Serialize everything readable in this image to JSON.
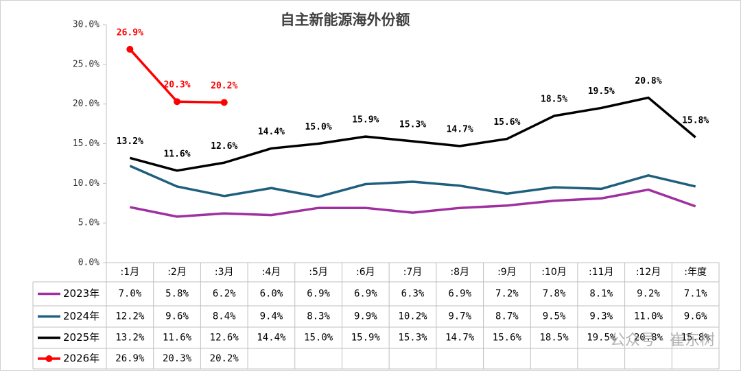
{
  "chart_data": {
    "type": "line",
    "title": "自主新能源海外份额",
    "categories": [
      ":1月",
      ":2月",
      ":3月",
      ":4月",
      ":5月",
      ":6月",
      ":7月",
      ":8月",
      ":9月",
      ":10月",
      ":11月",
      ":12月",
      ":年度"
    ],
    "series": [
      {
        "name": "2023年",
        "color": "#a0309f",
        "marker": false,
        "data_labels": false,
        "values": [
          7.0,
          5.8,
          6.2,
          6.0,
          6.9,
          6.9,
          6.3,
          6.9,
          7.2,
          7.8,
          8.1,
          9.2,
          7.1
        ],
        "value_labels": [
          "7.0%",
          "5.8%",
          "6.2%",
          "6.0%",
          "6.9%",
          "6.9%",
          "6.3%",
          "6.9%",
          "7.2%",
          "7.8%",
          "8.1%",
          "9.2%",
          "7.1%"
        ]
      },
      {
        "name": "2024年",
        "color": "#1f5f7e",
        "marker": false,
        "data_labels": false,
        "values": [
          12.2,
          9.6,
          8.4,
          9.4,
          8.3,
          9.9,
          10.2,
          9.7,
          8.7,
          9.5,
          9.3,
          11.0,
          9.6
        ],
        "value_labels": [
          "12.2%",
          "9.6%",
          "8.4%",
          "9.4%",
          "8.3%",
          "9.9%",
          "10.2%",
          "9.7%",
          "8.7%",
          "9.5%",
          "9.3%",
          "11.0%",
          "9.6%"
        ]
      },
      {
        "name": "2025年",
        "color": "#000000",
        "marker": false,
        "data_labels": true,
        "values": [
          13.2,
          11.6,
          12.6,
          14.4,
          15.0,
          15.9,
          15.3,
          14.7,
          15.6,
          18.5,
          19.5,
          20.8,
          15.8
        ],
        "value_labels": [
          "13.2%",
          "11.6%",
          "12.6%",
          "14.4%",
          "15.0%",
          "15.9%",
          "15.3%",
          "14.7%",
          "15.6%",
          "18.5%",
          "19.5%",
          "20.8%",
          "15.8%"
        ]
      },
      {
        "name": "2026年",
        "color": "#ff0000",
        "marker": true,
        "data_labels": true,
        "values": [
          26.9,
          20.3,
          20.2,
          null,
          null,
          null,
          null,
          null,
          null,
          null,
          null,
          null,
          null
        ],
        "value_labels": [
          "26.9%",
          "20.3%",
          "20.2%",
          null,
          null,
          null,
          null,
          null,
          null,
          null,
          null,
          null,
          null
        ]
      }
    ],
    "ylim": [
      0,
      30
    ],
    "yticks": [
      {
        "value": 0,
        "label": "0.0%"
      },
      {
        "value": 5,
        "label": "5.0%"
      },
      {
        "value": 10,
        "label": "10.0%"
      },
      {
        "value": 15,
        "label": "15.0%"
      },
      {
        "value": 20,
        "label": "20.0%"
      },
      {
        "value": 25,
        "label": "25.0%"
      },
      {
        "value": 30,
        "label": "30.0%"
      }
    ],
    "data_table": true,
    "grid": false,
    "watermark": "公众号 · 崔东树"
  }
}
